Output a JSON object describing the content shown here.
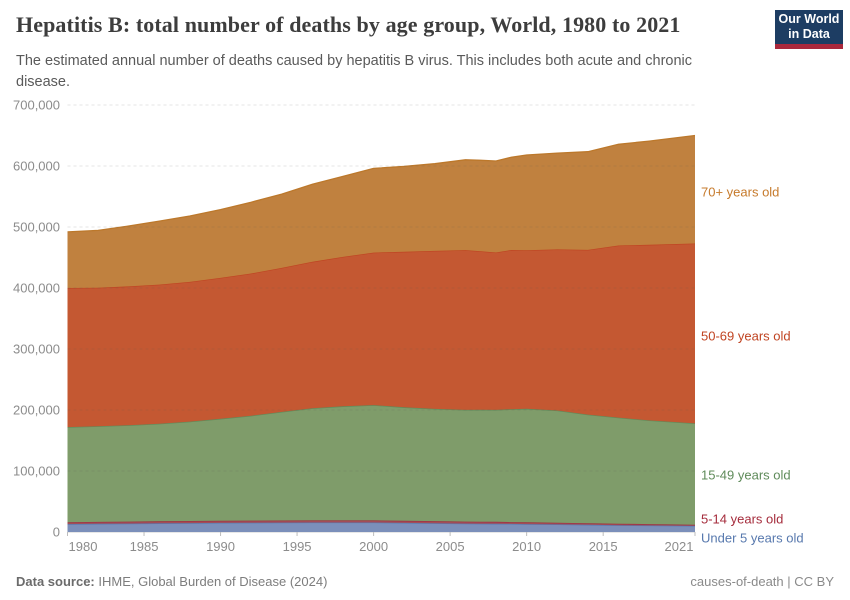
{
  "header": {
    "title": "Hepatitis B: total number of deaths by age group, World, 1980 to 2021",
    "subtitle": "The estimated annual number of deaths caused by hepatitis B virus. This includes both acute and chronic disease.",
    "logo": {
      "line1": "Our World",
      "line2": "in Data",
      "bg": "#1d3d63",
      "accent": "#aa283c"
    }
  },
  "chart_data": {
    "type": "area",
    "stacked": true,
    "title": "Hepatitis B: total number of deaths by age group, World, 1980 to 2021",
    "xlabel": "",
    "ylabel": "",
    "grid": "horizontal-dashed",
    "legend_position": "right",
    "xlim": [
      1980,
      2021
    ],
    "ylim": [
      0,
      700000
    ],
    "ytick_step": 100000,
    "ytick_labels": [
      "0",
      "100,000",
      "200,000",
      "300,000",
      "400,000",
      "500,000",
      "600,000",
      "700,000"
    ],
    "xticks": [
      1980,
      1985,
      1990,
      1995,
      2000,
      2005,
      2010,
      2015,
      2021
    ],
    "x": [
      1980,
      1982,
      1984,
      1986,
      1988,
      1990,
      1992,
      1994,
      1996,
      1998,
      2000,
      2002,
      2004,
      2006,
      2007,
      2008,
      2009,
      2010,
      2012,
      2014,
      2016,
      2018,
      2021
    ],
    "series": [
      {
        "key": "under5",
        "label": "Under 5 years old",
        "fill": "#7b8fba",
        "stroke": "#5879ae",
        "label_color": "#5879ae",
        "values": [
          13000,
          13400,
          13800,
          14200,
          14600,
          15000,
          15200,
          15400,
          15500,
          15500,
          15500,
          15000,
          14400,
          13800,
          13600,
          13500,
          13200,
          13000,
          12400,
          11800,
          11200,
          10700,
          10000
        ]
      },
      {
        "key": "5-14",
        "label": "5-14 years old",
        "fill": "#a34c57",
        "stroke": "#9e2f40",
        "label_color": "#a52c3c",
        "values": [
          3000,
          3100,
          3300,
          3400,
          3400,
          3500,
          3500,
          3500,
          3500,
          3500,
          3500,
          3400,
          3400,
          3300,
          3250,
          3200,
          3100,
          3000,
          2800,
          2600,
          2400,
          2200,
          2000
        ]
      },
      {
        "key": "15-49",
        "label": "15-49 years old",
        "fill": "#7f9c6a",
        "stroke": "#5f8b5a",
        "label_color": "#5f8b5a",
        "values": [
          156000,
          157000,
          158000,
          160000,
          163000,
          167000,
          172000,
          178000,
          184000,
          187000,
          189000,
          186000,
          184000,
          183000,
          183500,
          183500,
          185000,
          186000,
          184000,
          178000,
          174000,
          170000,
          166000
        ]
      },
      {
        "key": "50-69",
        "label": "50-69 years old",
        "fill": "#c45832",
        "stroke": "#bf4422",
        "label_color": "#c04422",
        "values": [
          228000,
          227000,
          227500,
          228000,
          229000,
          231000,
          233000,
          236000,
          240000,
          245000,
          250000,
          255000,
          259000,
          262000,
          260000,
          258000,
          261000,
          260000,
          264000,
          270000,
          282000,
          288000,
          295000
        ]
      },
      {
        "key": "70plus",
        "label": "70+ years old",
        "fill": "#c0813f",
        "stroke": "#bc782b",
        "label_color": "#c67a2b",
        "values": [
          92000,
          94000,
          99000,
          104000,
          108000,
          112000,
          117000,
          121000,
          127000,
          132000,
          138000,
          140000,
          143000,
          148000,
          149000,
          150000,
          152000,
          156000,
          158000,
          161000,
          166000,
          170000,
          177000
        ]
      }
    ]
  },
  "footer": {
    "source_label": "Data source:",
    "source_value": " IHME, Global Burden of Disease (2024)",
    "dataset": "causes-of-death",
    "separator": " | ",
    "license": "CC BY"
  }
}
